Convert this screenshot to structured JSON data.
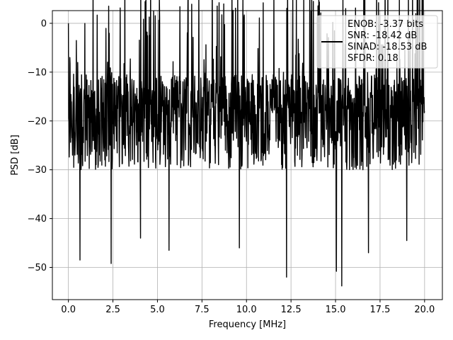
{
  "chart_data": {
    "type": "line",
    "xlabel": "Frequency [MHz]",
    "ylabel": "PSD [dB]",
    "xlim": [
      -0.9,
      21.0
    ],
    "ylim": [
      -56.6,
      2.6
    ],
    "xticks": [
      0.0,
      2.5,
      5.0,
      7.5,
      10.0,
      12.5,
      15.0,
      17.5,
      20.0
    ],
    "xtick_labels": [
      "0.0",
      "2.5",
      "5.0",
      "7.5",
      "10.0",
      "12.5",
      "15.0",
      "17.5",
      "20.0"
    ],
    "yticks": [
      0,
      -10,
      -20,
      -30,
      -40,
      -50
    ],
    "ytick_labels": [
      "0",
      "−10",
      "−20",
      "−30",
      "−40",
      "−50"
    ],
    "grid": true,
    "legend": {
      "placement": "top-right",
      "line_color": "#000000",
      "entries": [
        "ENOB: -3.37 bits",
        "SNR: -18.42 dB",
        "SINAD: -18.53 dB",
        "SFDR: 0.18"
      ]
    },
    "series": [
      {
        "color": "#000000",
        "x_range": [
          0.0,
          20.0
        ],
        "notable_points": [
          {
            "x": 0.0,
            "y": 0.0
          },
          {
            "x": 0.08,
            "y": -7.0
          },
          {
            "x": 0.15,
            "y": -16.0
          },
          {
            "x": 0.3,
            "y": -29.5
          },
          {
            "x": 0.65,
            "y": -48.5
          },
          {
            "x": 2.4,
            "y": -49.2
          },
          {
            "x": 4.05,
            "y": -44.0
          },
          {
            "x": 5.65,
            "y": -46.5
          },
          {
            "x": 9.6,
            "y": -46.0
          },
          {
            "x": 12.25,
            "y": -52.0
          },
          {
            "x": 15.35,
            "y": -53.8
          },
          {
            "x": 15.05,
            "y": -50.8
          },
          {
            "x": 16.85,
            "y": -47.0
          },
          {
            "x": 19.0,
            "y": -44.5
          }
        ],
        "envelope": {
          "top": -10.5,
          "bottom_typical": -35.0
        }
      }
    ]
  }
}
